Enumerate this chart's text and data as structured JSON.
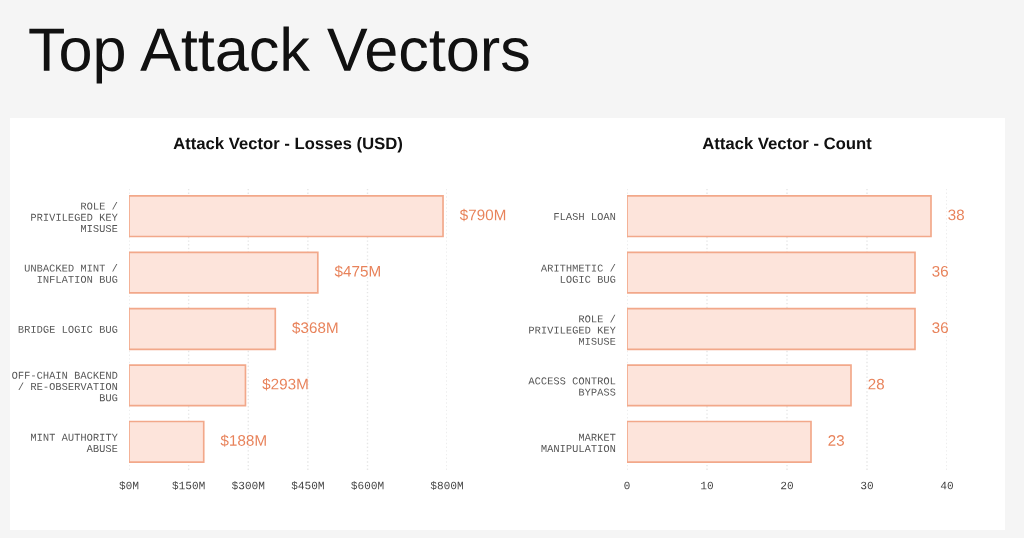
{
  "chart_data": [
    {
      "type": "other",
      "title": "Top Attack Vectors"
    },
    {
      "type": "bar",
      "orientation": "horizontal",
      "title": "Attack Vector - Losses (USD)",
      "categories": [
        "ROLE /\nPRIVILEGED KEY\nMISUSE",
        "UNBACKED MINT /\nINFLATION BUG",
        "BRIDGE LOGIC BUG",
        "OFF-CHAIN BACKEND\n/ RE-OBSERVATION\nBUG",
        "MINT AUTHORITY\nABUSE"
      ],
      "values": [
        790,
        475,
        368,
        293,
        188
      ],
      "value_labels": [
        "$790M",
        "$475M",
        "$368M",
        "$293M",
        "$188M"
      ],
      "color": "#fde4db",
      "xlim": [
        0,
        800
      ],
      "xticks": [
        {
          "value": 0,
          "label": "$0M"
        },
        {
          "value": 150,
          "label": "$150M"
        },
        {
          "value": 300,
          "label": "$300M"
        },
        {
          "value": 450,
          "label": "$450M"
        },
        {
          "value": 600,
          "label": "$600M"
        },
        {
          "value": 800,
          "label": "$800M"
        }
      ],
      "grid": "x"
    },
    {
      "type": "bar",
      "orientation": "horizontal",
      "title": "Attack Vector - Count",
      "categories": [
        "FLASH LOAN",
        "ARITHMETIC /\nLOGIC BUG",
        "ROLE /\nPRIVILEGED KEY\nMISUSE",
        "ACCESS CONTROL\nBYPASS",
        "MARKET\nMANIPULATION"
      ],
      "values": [
        38,
        36,
        36,
        28,
        23
      ],
      "data_labels": true,
      "color": "#fde4db",
      "xlim": [
        0,
        40
      ],
      "xticks": [
        0,
        10,
        20,
        30,
        40
      ],
      "grid": "x"
    }
  ]
}
